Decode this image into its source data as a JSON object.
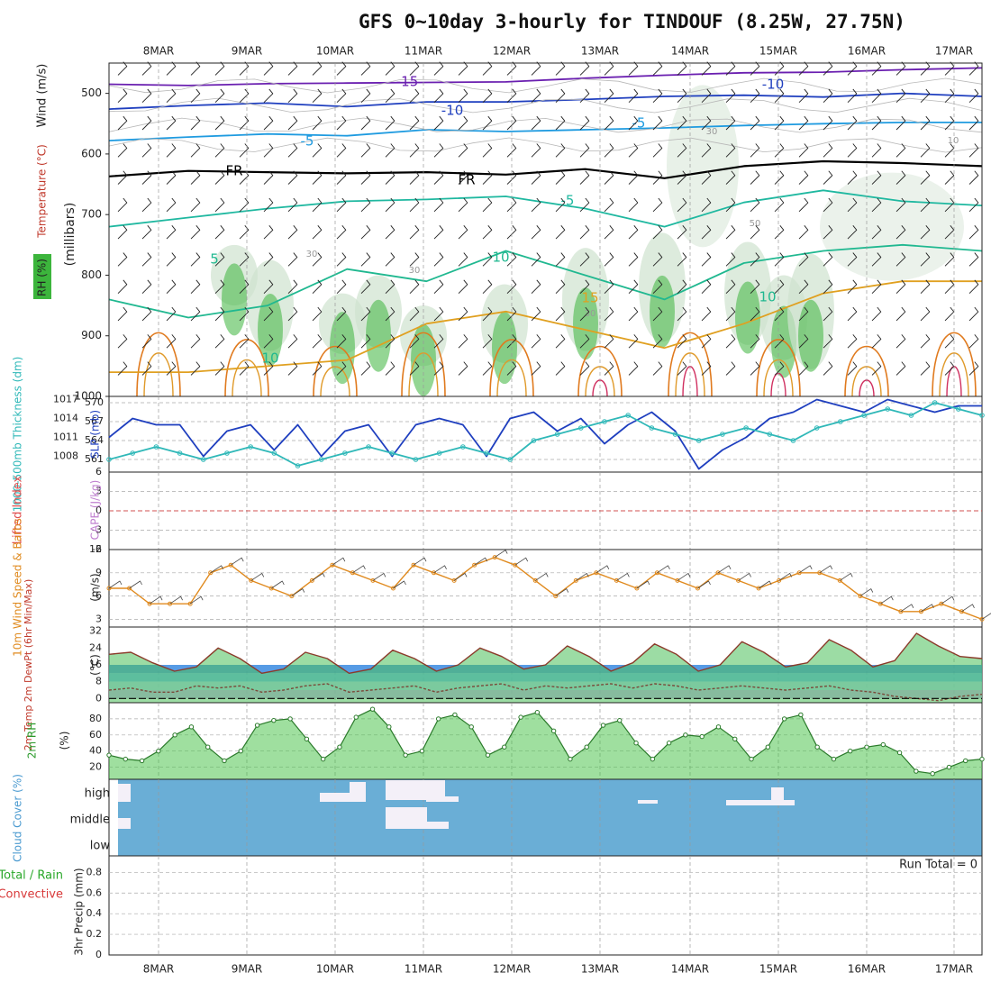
{
  "title": "GFS 0~10day 3-hourly for TINDOUF (8.25W, 27.75N)",
  "dates": [
    "8MAR",
    "9MAR",
    "10MAR",
    "11MAR",
    "12MAR",
    "13MAR",
    "14MAR",
    "15MAR",
    "16MAR",
    "17MAR"
  ],
  "colors": {
    "rh_green": "#3cb53c",
    "slp_blue": "#1f3fbf",
    "thickness_teal": "#2fb8b8",
    "lifted_index": "#e05050",
    "wind_speed": "#e08a1e",
    "cloud_blue": "#6aaed6",
    "temp_line": "#8b3a2a",
    "dewpt_line": "#7a4a3a"
  },
  "chart_data": [
    {
      "panel": "upper_air",
      "type": "contour",
      "ylabel_left": "Wind (m/s)",
      "ylabel_left2": "Temperature (°C)",
      "ylabel_left3": "RH (%)",
      "ylabel_right": "(millibars)",
      "yticks": [
        "500",
        "600",
        "700",
        "800",
        "900",
        "1000"
      ],
      "ylim": [
        450,
        1000
      ],
      "temperature_contours": [
        {
          "label": "-15",
          "color": "#6a1fb0",
          "level_mb": [
            485,
            487,
            484,
            483,
            482,
            481,
            475,
            470,
            466,
            465,
            461,
            458
          ]
        },
        {
          "label": "-10",
          "color": "#1f3fbf",
          "level_mb": [
            526,
            520,
            516,
            522,
            514,
            514,
            510,
            505,
            503,
            506,
            500,
            505
          ]
        },
        {
          "label": "-5",
          "color": "#1f9be0",
          "level_mb": [
            578,
            572,
            567,
            570,
            560,
            563,
            560,
            557,
            553,
            550,
            548,
            548
          ]
        },
        {
          "label": "FR",
          "color": "#000000",
          "level_mb": [
            637,
            628,
            630,
            632,
            630,
            634,
            625,
            640,
            620,
            612,
            615,
            620
          ]
        },
        {
          "label": "-5",
          "color": "#1fb8a0",
          "level_mb": [
            720,
            705,
            690,
            678,
            675,
            670,
            690,
            720,
            680,
            660,
            678,
            685
          ]
        },
        {
          "label": "10",
          "color": "#20b890",
          "level_mb": [
            840,
            870,
            850,
            790,
            810,
            760,
            800,
            840,
            780,
            760,
            750,
            760
          ]
        },
        {
          "label": "15",
          "color": "#e0a020",
          "level_mb": [
            960,
            960,
            950,
            940,
            880,
            860,
            890,
            920,
            880,
            830,
            810,
            810
          ]
        }
      ],
      "contour_labels": [
        "-15",
        "-10",
        "-10",
        "-5",
        "-5",
        "FR",
        "FR",
        "-5",
        "10",
        "10",
        "15",
        "10",
        "5",
        "30",
        "30",
        "30",
        "50",
        "30",
        "10"
      ]
    },
    {
      "panel": "slp_thickness",
      "type": "line",
      "ylabel_left": "1000-500mb Thickness (dm)",
      "ylabel_right": "SLP (mb)",
      "yticks_left": [
        "561",
        "564",
        "567",
        "570"
      ],
      "yticks_right": [
        "1008",
        "1011",
        "1014",
        "1017"
      ],
      "series": [
        {
          "name": "SLP (mb)",
          "values": [
            1011,
            1014,
            1013,
            1013,
            1008,
            1012,
            1013,
            1009,
            1013,
            1008,
            1012,
            1013,
            1008,
            1013,
            1014,
            1013,
            1008,
            1014,
            1015,
            1012,
            1014,
            1010,
            1013,
            1015,
            1012,
            1006,
            1009,
            1011,
            1014,
            1015,
            1017,
            1016,
            1015,
            1017,
            1016,
            1015,
            1016,
            1016
          ]
        },
        {
          "name": "1000-500mb Thickness (dm)",
          "values": [
            561,
            562,
            563,
            562,
            561,
            562,
            563,
            562,
            560,
            561,
            562,
            563,
            562,
            561,
            562,
            563,
            562,
            561,
            564,
            565,
            566,
            567,
            568,
            566,
            565,
            564,
            565,
            566,
            565,
            564,
            566,
            567,
            568,
            569,
            568,
            570,
            569,
            568
          ]
        }
      ]
    },
    {
      "panel": "cape_li",
      "type": "line",
      "ylabel_left": "Lifted Index",
      "ylabel_right": "CAPE (J/kg)",
      "yticks": [
        "-6",
        "-3",
        "0",
        "3",
        "6"
      ],
      "ylim": [
        -6,
        6
      ]
    },
    {
      "panel": "wind10m",
      "type": "line",
      "ylabel_left": "10m Wind Speed & Barbs",
      "ylabel_right": "(m/s)",
      "yticks": [
        "3",
        "6",
        "9",
        "12"
      ],
      "ylim": [
        2,
        12
      ],
      "values": [
        7,
        7,
        5,
        5,
        5,
        9,
        10,
        8,
        7,
        6,
        8,
        10,
        9,
        8,
        7,
        10,
        9,
        8,
        10,
        11,
        10,
        8,
        6,
        8,
        9,
        8,
        7,
        9,
        8,
        7,
        9,
        8,
        7,
        8,
        9,
        9,
        8,
        6,
        5,
        4,
        4,
        5,
        4,
        3
      ]
    },
    {
      "panel": "temp2m",
      "type": "area",
      "ylabel_left": "2m Temp 2m DewPt (6hr Min/Max)",
      "ylabel_right": "(°C)",
      "yticks": [
        "0",
        "8",
        "16",
        "24",
        "32"
      ],
      "ylim": [
        -2,
        34
      ],
      "series": [
        {
          "name": "2m Temp",
          "values": [
            21,
            22,
            17,
            13,
            15,
            24,
            19,
            12,
            14,
            22,
            19,
            12,
            14,
            23,
            19,
            13,
            16,
            24,
            20,
            14,
            16,
            25,
            20,
            13,
            17,
            26,
            21,
            13,
            16,
            27,
            22,
            15,
            17,
            28,
            23,
            15,
            18,
            31,
            25,
            20,
            19
          ]
        },
        {
          "name": "2m DewPt",
          "values": [
            4,
            5,
            3,
            3,
            6,
            5,
            6,
            3,
            4,
            6,
            7,
            3,
            4,
            5,
            6,
            3,
            5,
            6,
            7,
            4,
            6,
            5,
            6,
            7,
            5,
            7,
            6,
            4,
            5,
            6,
            5,
            4,
            5,
            6,
            4,
            3,
            1,
            0,
            -1,
            1,
            2
          ]
        }
      ]
    },
    {
      "panel": "rh2m",
      "type": "area",
      "ylabel_left": "2m RH",
      "ylabel_right": "(%)",
      "yticks": [
        "20",
        "40",
        "60",
        "80"
      ],
      "ylim": [
        5,
        100
      ],
      "values": [
        35,
        30,
        28,
        40,
        60,
        70,
        45,
        28,
        40,
        72,
        78,
        80,
        55,
        30,
        45,
        82,
        92,
        70,
        35,
        40,
        80,
        85,
        70,
        35,
        45,
        82,
        88,
        65,
        30,
        45,
        72,
        78,
        50,
        30,
        50,
        60,
        58,
        70,
        55,
        30,
        45,
        80,
        85,
        45,
        30,
        40,
        45,
        48,
        38,
        15,
        12,
        20,
        28,
        30
      ]
    },
    {
      "panel": "cloud_cover",
      "type": "heatmap",
      "ylabel_left": "Cloud Cover (%)",
      "levels": [
        "high",
        "middle",
        "low"
      ]
    },
    {
      "panel": "precip",
      "type": "bar",
      "ylabel_left": "3hr Precip (mm)",
      "ylabel_left2": "Total / Rain",
      "ylabel_left3": "Convective",
      "yticks": [
        "0",
        "0.2",
        "0.4",
        "0.6",
        "0.8"
      ],
      "ylim": [
        0,
        0.96
      ],
      "run_total_label": "Run Total = 0"
    }
  ]
}
